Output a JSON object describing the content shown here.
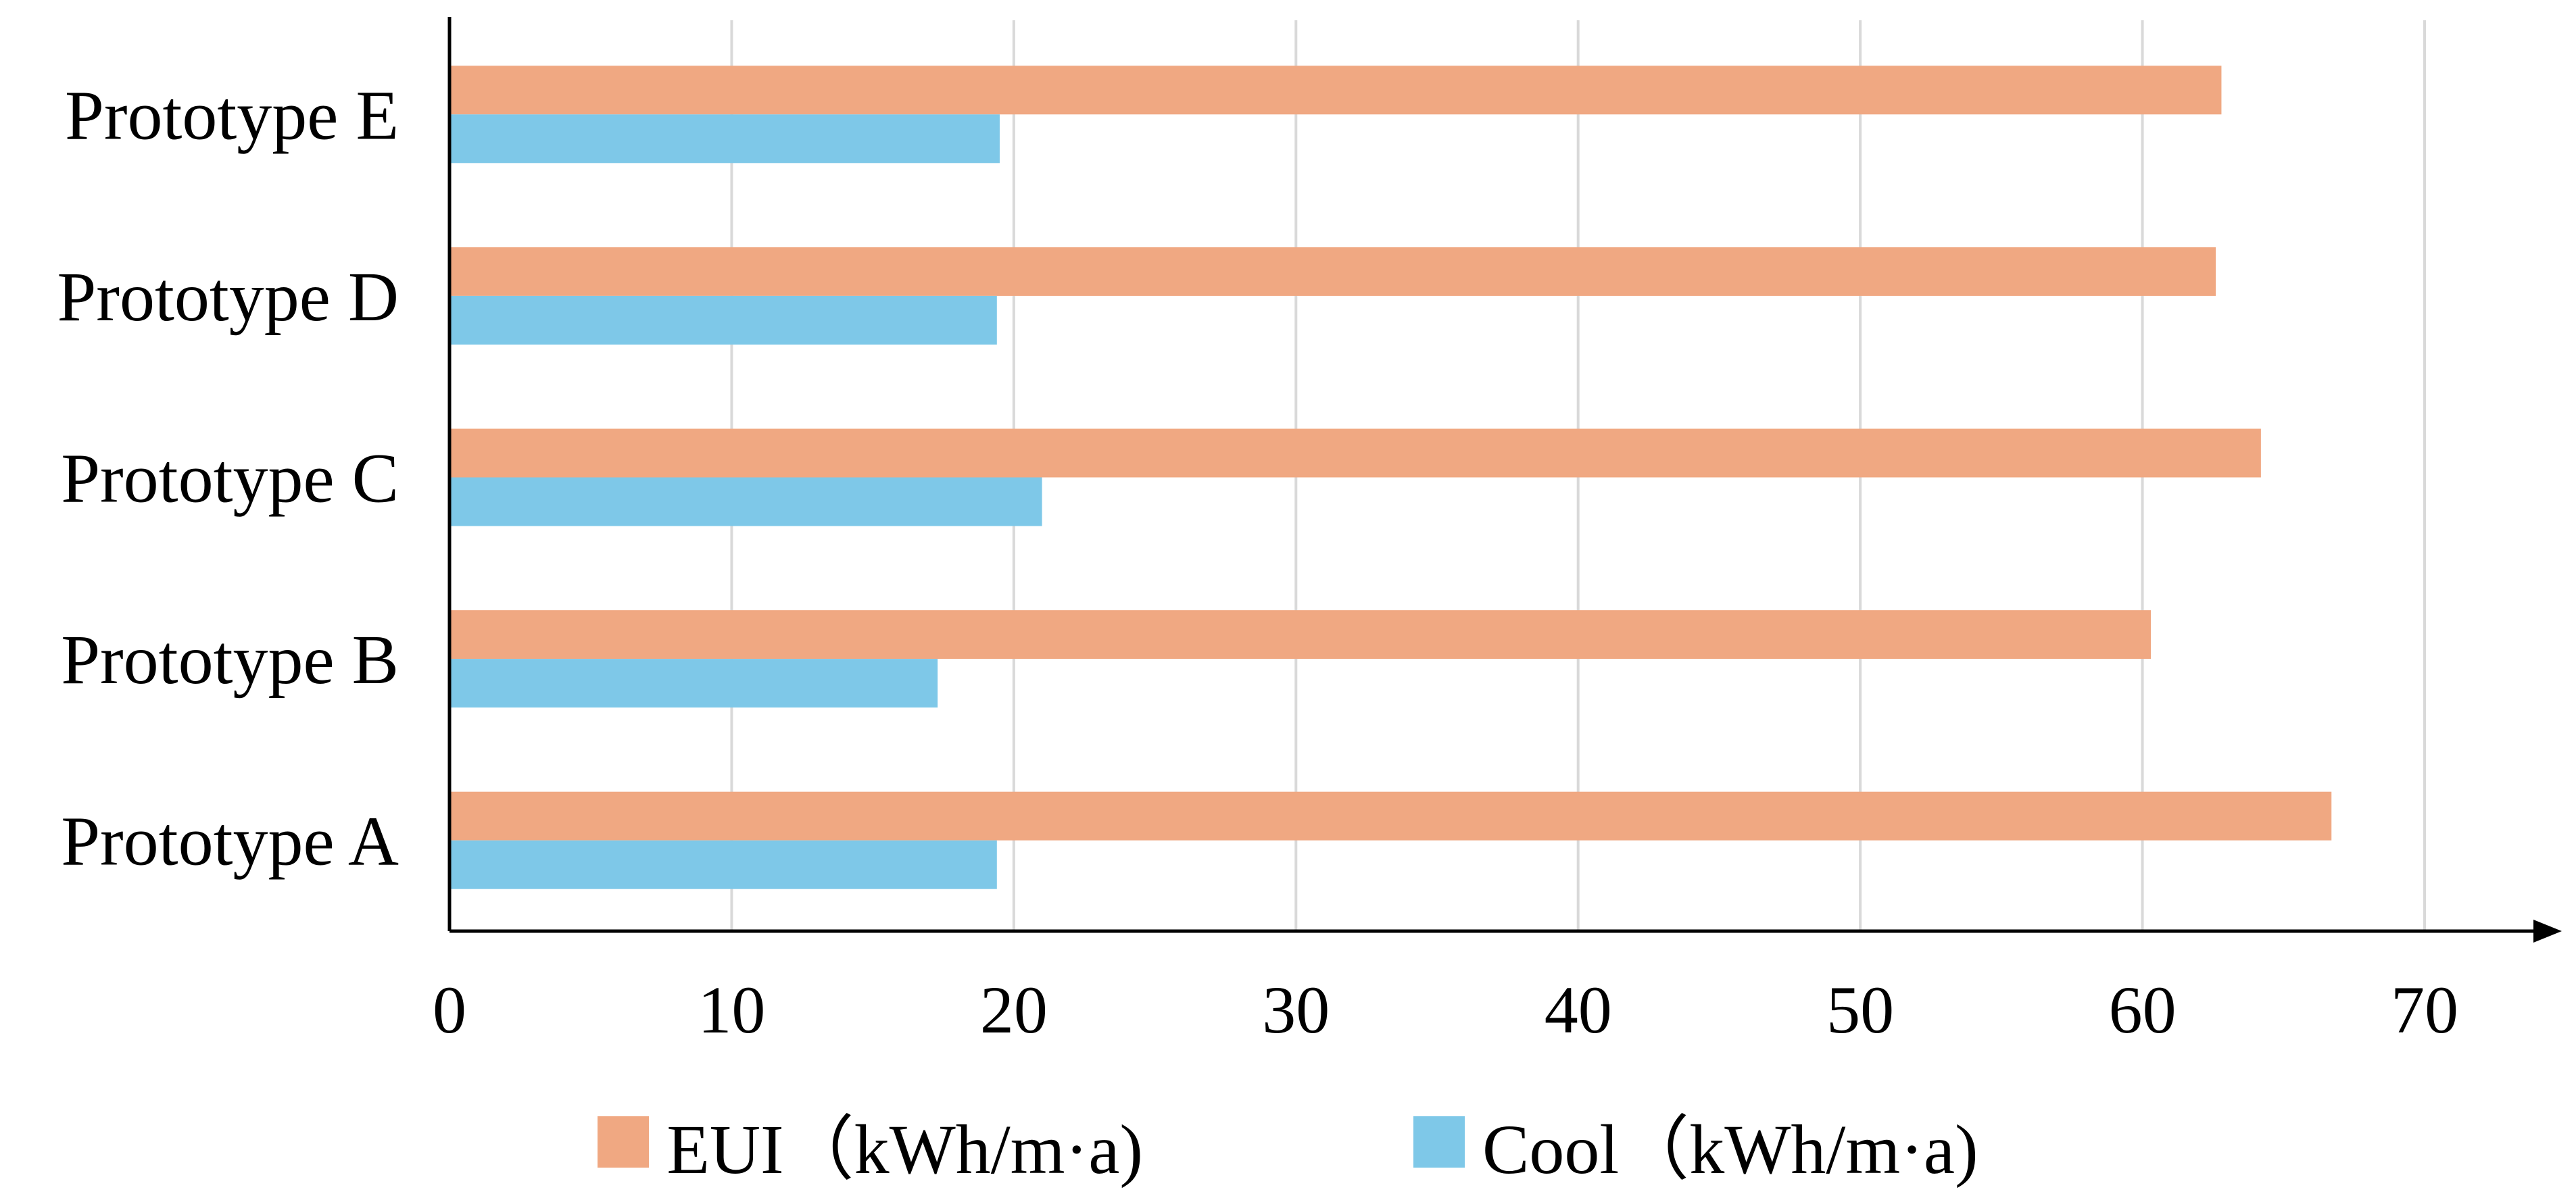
{
  "chart_data": {
    "type": "bar",
    "orientation": "horizontal",
    "title": "",
    "xlabel": "",
    "ylabel": "",
    "categories": [
      "Prototype A",
      "Prototype B",
      "Prototype C",
      "Prototype D",
      "Prototype E"
    ],
    "series": [
      {
        "name": "EUI（kWh/m·a)",
        "label": "EUI（kWh/m·a)",
        "color": "#F0A882",
        "values": [
          66.7,
          60.3,
          64.2,
          62.6,
          62.8
        ]
      },
      {
        "name": "Cool（kWh/m·a)",
        "label": "Cool（kWh/m·a)",
        "color": "#7EC8E8",
        "values": [
          19.4,
          17.3,
          21.0,
          19.4,
          19.5
        ]
      }
    ],
    "xlim": [
      0,
      74
    ],
    "xticks": [
      0,
      10,
      20,
      30,
      40,
      50,
      60,
      70
    ],
    "grid": true,
    "legend_position": "bottom"
  }
}
